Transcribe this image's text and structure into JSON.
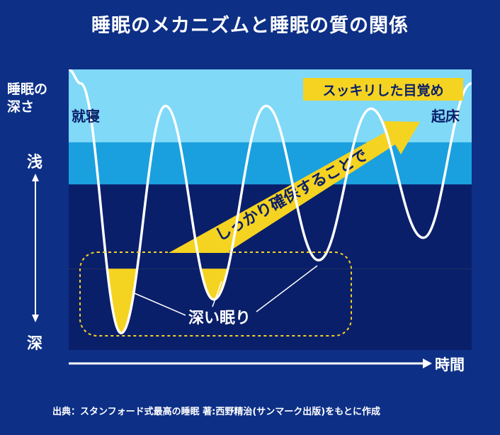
{
  "title": "睡眠のメカニズムと睡眠の質の関係",
  "source": "出典：スタンフォード式最高の睡眠 著:西野精治(サンマーク出版)をもとに作成",
  "colors": {
    "background": "#0d2f86",
    "light_band": "#7fd9f7",
    "mid_band": "#1aa0df",
    "deep_band": "#0a1f6a",
    "highlight": "#f5d321",
    "curve": "#ffffff"
  },
  "chart_data": {
    "type": "line",
    "title": "睡眠のメカニズムと睡眠の質の関係",
    "ylabel": "睡眠の深さ",
    "ylabel_lines": [
      "睡眠の",
      "深さ"
    ],
    "xlabel": "時間",
    "y_ticks": {
      "top": "浅",
      "bottom": "深"
    },
    "y_direction": "down-is-deeper",
    "ylim": [
      0,
      1
    ],
    "bands": [
      {
        "from": 0.0,
        "to": 0.26,
        "level": "light"
      },
      {
        "from": 0.26,
        "to": 0.41,
        "level": "mid"
      },
      {
        "from": 0.41,
        "to": 1.0,
        "level": "deep"
      }
    ],
    "sleep_curve": {
      "x": [
        0.0,
        0.03,
        0.13,
        0.24,
        0.36,
        0.49,
        0.62,
        0.75,
        0.88,
        1.0
      ],
      "depth": [
        0.0,
        0.05,
        0.94,
        0.13,
        0.82,
        0.13,
        0.68,
        0.14,
        0.6,
        0.05
      ]
    },
    "deep_sleep_threshold": 0.71,
    "annotations": {
      "start": "就寝",
      "end": "起床",
      "wake_note": "スッキリした目覚め",
      "deep_sleep": "深い眠り",
      "arrow": "しっかり確保することで"
    }
  }
}
